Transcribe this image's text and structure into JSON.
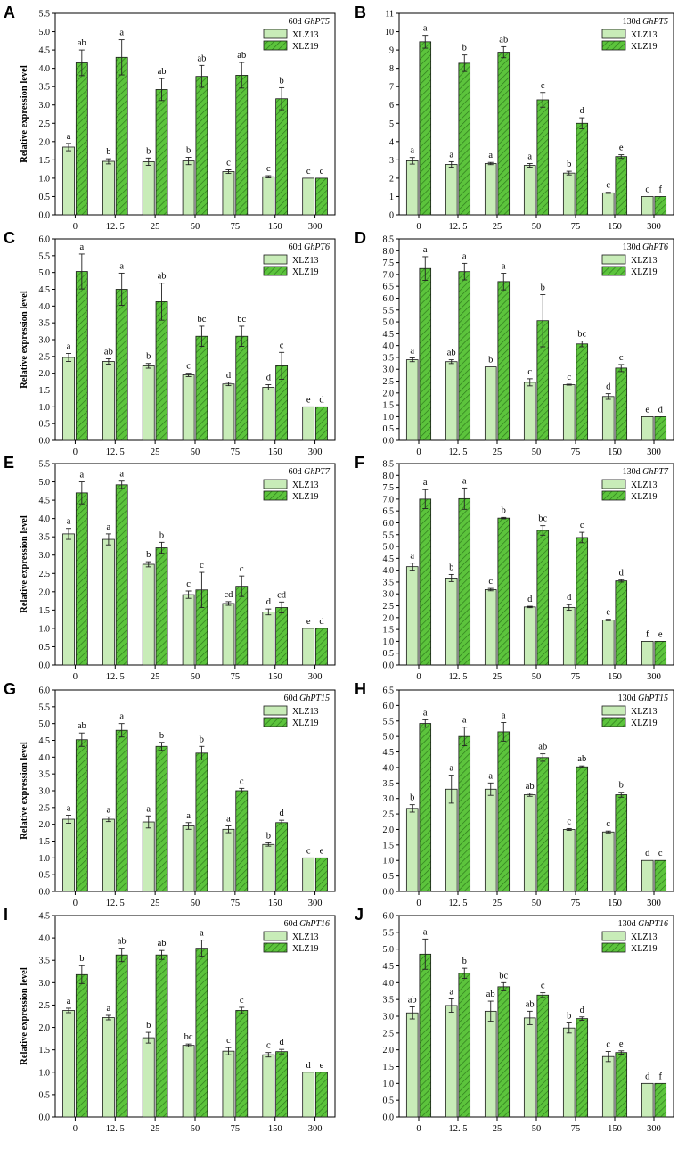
{
  "figure": {
    "ylabel": "Relative expression level",
    "x_categories": [
      "0",
      "12. 5",
      "25",
      "50",
      "75",
      "150",
      "300"
    ],
    "series_names": [
      "XLZ13",
      "XLZ19"
    ],
    "colors": {
      "XLZ13": "#c8ecb8",
      "XLZ19": "#5cc43c",
      "hatch": "#2f7a1e"
    }
  },
  "chart_data": [
    {
      "panel": "A",
      "type": "bar",
      "stage": "60d",
      "gene": "GhPT5",
      "title": "60d GhPT5",
      "xlabel": "",
      "ylabel": "Relative expression level",
      "categories": [
        "0",
        "12. 5",
        "25",
        "50",
        "75",
        "150",
        "300"
      ],
      "ylim": [
        0,
        5.5
      ],
      "ytick_step": 0.5,
      "series": [
        {
          "name": "XLZ13",
          "values": [
            1.85,
            1.46,
            1.45,
            1.47,
            1.18,
            1.04,
            1.0
          ],
          "errors": [
            0.1,
            0.07,
            0.1,
            0.1,
            0.05,
            0.03,
            0.0
          ],
          "letters": [
            "a",
            "b",
            "b",
            "b",
            "c",
            "c",
            "c"
          ]
        },
        {
          "name": "XLZ19",
          "values": [
            4.15,
            4.3,
            3.42,
            3.78,
            3.81,
            3.17,
            1.0
          ],
          "errors": [
            0.35,
            0.48,
            0.3,
            0.3,
            0.35,
            0.3,
            0.0
          ],
          "letters": [
            "ab",
            "a",
            "ab",
            "ab",
            "ab",
            "b",
            "c"
          ]
        }
      ]
    },
    {
      "panel": "B",
      "type": "bar",
      "stage": "130d",
      "gene": "GhPT5",
      "title": "130d GhPT5",
      "xlabel": "",
      "ylabel": "",
      "categories": [
        "0",
        "12. 5",
        "25",
        "50",
        "75",
        "150",
        "300"
      ],
      "ylim": [
        0,
        11
      ],
      "ytick_step": 1,
      "series": [
        {
          "name": "XLZ13",
          "values": [
            2.95,
            2.75,
            2.8,
            2.7,
            2.28,
            1.2,
            1.0
          ],
          "errors": [
            0.18,
            0.15,
            0.06,
            0.1,
            0.1,
            0.03,
            0.0
          ],
          "letters": [
            "a",
            "a",
            "a",
            "a",
            "b",
            "c",
            "c"
          ]
        },
        {
          "name": "XLZ19",
          "values": [
            9.45,
            8.28,
            8.88,
            6.28,
            5.0,
            3.18,
            1.0
          ],
          "errors": [
            0.35,
            0.45,
            0.3,
            0.4,
            0.3,
            0.1,
            0.0
          ],
          "letters": [
            "a",
            "b",
            "ab",
            "c",
            "d",
            "e",
            "f"
          ]
        }
      ]
    },
    {
      "panel": "C",
      "type": "bar",
      "stage": "60d",
      "gene": "GhPT6",
      "title": "60d GhPT6",
      "xlabel": "",
      "ylabel": "Relative expression level",
      "categories": [
        "0",
        "12. 5",
        "25",
        "50",
        "75",
        "150",
        "300"
      ],
      "ylim": [
        0,
        6
      ],
      "ytick_step": 0.5,
      "series": [
        {
          "name": "XLZ13",
          "values": [
            2.47,
            2.35,
            2.22,
            1.95,
            1.68,
            1.58,
            1.0
          ],
          "errors": [
            0.12,
            0.08,
            0.07,
            0.05,
            0.05,
            0.08,
            0.0
          ],
          "letters": [
            "a",
            "ab",
            "b",
            "c",
            "d",
            "d",
            "e"
          ]
        },
        {
          "name": "XLZ19",
          "values": [
            5.03,
            4.5,
            4.13,
            3.1,
            3.1,
            2.22,
            1.0
          ],
          "errors": [
            0.52,
            0.48,
            0.55,
            0.3,
            0.3,
            0.4,
            0.0
          ],
          "letters": [
            "a",
            "a",
            "ab",
            "bc",
            "bc",
            "c",
            "d"
          ]
        }
      ]
    },
    {
      "panel": "D",
      "type": "bar",
      "stage": "130d",
      "gene": "GhPT6",
      "title": "130d GhPT6",
      "xlabel": "",
      "ylabel": "",
      "categories": [
        "0",
        "12. 5",
        "25",
        "50",
        "75",
        "150",
        "300"
      ],
      "ylim": [
        0,
        8.5
      ],
      "ytick_step": 0.5,
      "series": [
        {
          "name": "XLZ13",
          "values": [
            3.4,
            3.32,
            3.1,
            2.45,
            2.35,
            1.85,
            1.0
          ],
          "errors": [
            0.08,
            0.08,
            0.0,
            0.15,
            0.02,
            0.12,
            0.0
          ],
          "letters": [
            "a",
            "ab",
            "b",
            "c",
            "c",
            "d",
            "e"
          ]
        },
        {
          "name": "XLZ19",
          "values": [
            7.25,
            7.12,
            6.7,
            5.05,
            4.07,
            3.05,
            1.0
          ],
          "errors": [
            0.5,
            0.35,
            0.35,
            1.1,
            0.12,
            0.15,
            0.0
          ],
          "letters": [
            "a",
            "a",
            "a",
            "b",
            "bc",
            "c",
            "d"
          ]
        }
      ]
    },
    {
      "panel": "E",
      "type": "bar",
      "stage": "60d",
      "gene": "GhPT7",
      "title": "60d GhPT7",
      "xlabel": "",
      "ylabel": "Relative expression level",
      "categories": [
        "0",
        "12. 5",
        "25",
        "50",
        "75",
        "150",
        "300"
      ],
      "ylim": [
        0,
        5.5
      ],
      "ytick_step": 0.5,
      "series": [
        {
          "name": "XLZ13",
          "values": [
            3.58,
            3.43,
            2.75,
            1.92,
            1.68,
            1.45,
            1.0
          ],
          "errors": [
            0.15,
            0.15,
            0.07,
            0.1,
            0.05,
            0.08,
            0.0
          ],
          "letters": [
            "a",
            "a",
            "b",
            "c",
            "cd",
            "d",
            "e"
          ]
        },
        {
          "name": "XLZ19",
          "values": [
            4.7,
            4.92,
            3.2,
            2.05,
            2.15,
            1.57,
            1.0
          ],
          "errors": [
            0.3,
            0.1,
            0.15,
            0.48,
            0.28,
            0.15,
            0.0
          ],
          "letters": [
            "a",
            "a",
            "b",
            "c",
            "c",
            "cd",
            "d"
          ]
        }
      ]
    },
    {
      "panel": "F",
      "type": "bar",
      "stage": "130d",
      "gene": "GhPT7",
      "title": "130d GhPT7",
      "xlabel": "",
      "ylabel": "",
      "categories": [
        "0",
        "12. 5",
        "25",
        "50",
        "75",
        "150",
        "300"
      ],
      "ylim": [
        0,
        8.5
      ],
      "ytick_step": 0.5,
      "series": [
        {
          "name": "XLZ13",
          "values": [
            4.15,
            3.67,
            3.18,
            2.45,
            2.43,
            1.9,
            1.0
          ],
          "errors": [
            0.15,
            0.15,
            0.05,
            0.03,
            0.12,
            0.03,
            0.0
          ],
          "letters": [
            "a",
            "b",
            "c",
            "d",
            "d",
            "e",
            "f"
          ]
        },
        {
          "name": "XLZ19",
          "values": [
            7.0,
            7.02,
            6.2,
            5.68,
            5.38,
            3.55,
            1.0
          ],
          "errors": [
            0.4,
            0.45,
            0.03,
            0.2,
            0.22,
            0.05,
            0.0
          ],
          "letters": [
            "a",
            "a",
            "b",
            "bc",
            "c",
            "d",
            "e"
          ]
        }
      ]
    },
    {
      "panel": "G",
      "type": "bar",
      "stage": "60d",
      "gene": "GhPT15",
      "title": "60d GhPT15",
      "xlabel": "",
      "ylabel": "Relative expression level",
      "categories": [
        "0",
        "12. 5",
        "25",
        "50",
        "75",
        "150",
        "300"
      ],
      "ylim": [
        0,
        6
      ],
      "ytick_step": 0.5,
      "series": [
        {
          "name": "XLZ13",
          "values": [
            2.15,
            2.15,
            2.07,
            1.95,
            1.85,
            1.4,
            1.0
          ],
          "errors": [
            0.12,
            0.07,
            0.18,
            0.1,
            0.1,
            0.05,
            0.0
          ],
          "letters": [
            "a",
            "a",
            "a",
            "a",
            "a",
            "b",
            "c"
          ]
        },
        {
          "name": "XLZ19",
          "values": [
            4.52,
            4.8,
            4.32,
            4.12,
            3.0,
            2.05,
            1.0
          ],
          "errors": [
            0.2,
            0.2,
            0.12,
            0.2,
            0.07,
            0.07,
            0.0
          ],
          "letters": [
            "ab",
            "a",
            "b",
            "b",
            "c",
            "d",
            "e"
          ]
        }
      ]
    },
    {
      "panel": "H",
      "type": "bar",
      "stage": "130d",
      "gene": "GhPT15",
      "title": "130d GhPT15",
      "xlabel": "",
      "ylabel": "",
      "categories": [
        "0",
        "12. 5",
        "25",
        "50",
        "75",
        "150",
        "300"
      ],
      "ylim": [
        0,
        6.5
      ],
      "ytick_step": 0.5,
      "series": [
        {
          "name": "XLZ13",
          "values": [
            2.68,
            3.3,
            3.3,
            3.12,
            2.0,
            1.92,
            1.0
          ],
          "errors": [
            0.12,
            0.45,
            0.2,
            0.05,
            0.03,
            0.03,
            0.0
          ],
          "letters": [
            "b",
            "a",
            "a",
            "ab",
            "c",
            "c",
            "d"
          ]
        },
        {
          "name": "XLZ19",
          "values": [
            5.42,
            5.0,
            5.15,
            4.32,
            4.02,
            3.12,
            1.0
          ],
          "errors": [
            0.12,
            0.3,
            0.3,
            0.12,
            0.03,
            0.08,
            0.0
          ],
          "letters": [
            "a",
            "a",
            "a",
            "ab",
            "ab",
            "b",
            "c"
          ]
        }
      ]
    },
    {
      "panel": "I",
      "type": "bar",
      "stage": "60d",
      "gene": "GhPT16",
      "title": "60d GhPT16",
      "xlabel": "",
      "ylabel": "Relative expression level",
      "categories": [
        "0",
        "12. 5",
        "25",
        "50",
        "75",
        "150",
        "300"
      ],
      "ylim": [
        0,
        4.5
      ],
      "ytick_step": 0.5,
      "series": [
        {
          "name": "XLZ13",
          "values": [
            2.38,
            2.22,
            1.77,
            1.6,
            1.47,
            1.39,
            1.0
          ],
          "errors": [
            0.05,
            0.05,
            0.12,
            0.03,
            0.08,
            0.05,
            0.0
          ],
          "letters": [
            "a",
            "a",
            "b",
            "bc",
            "c",
            "c",
            "d"
          ]
        },
        {
          "name": "XLZ19",
          "values": [
            3.18,
            3.62,
            3.62,
            3.77,
            2.38,
            1.46,
            1.0
          ],
          "errors": [
            0.2,
            0.15,
            0.1,
            0.18,
            0.07,
            0.05,
            0.0
          ],
          "letters": [
            "b",
            "ab",
            "ab",
            "a",
            "c",
            "d",
            "e"
          ]
        }
      ]
    },
    {
      "panel": "J",
      "type": "bar",
      "stage": "130d",
      "gene": "GhPT16",
      "title": "130d GhPT16",
      "xlabel": "",
      "ylabel": "",
      "categories": [
        "0",
        "12. 5",
        "25",
        "50",
        "75",
        "150",
        "300"
      ],
      "ylim": [
        0,
        6
      ],
      "ytick_step": 0.5,
      "series": [
        {
          "name": "XLZ13",
          "values": [
            3.1,
            3.32,
            3.15,
            2.95,
            2.65,
            1.8,
            1.0
          ],
          "errors": [
            0.18,
            0.2,
            0.3,
            0.2,
            0.15,
            0.15,
            0.0
          ],
          "letters": [
            "ab",
            "a",
            "ab",
            "ab",
            "b",
            "c",
            "d"
          ]
        },
        {
          "name": "XLZ19",
          "values": [
            4.85,
            4.28,
            3.88,
            3.63,
            2.93,
            1.92,
            1.0
          ],
          "errors": [
            0.45,
            0.15,
            0.12,
            0.07,
            0.05,
            0.05,
            0.0
          ],
          "letters": [
            "a",
            "b",
            "bc",
            "c",
            "d",
            "e",
            "f"
          ]
        }
      ]
    }
  ]
}
